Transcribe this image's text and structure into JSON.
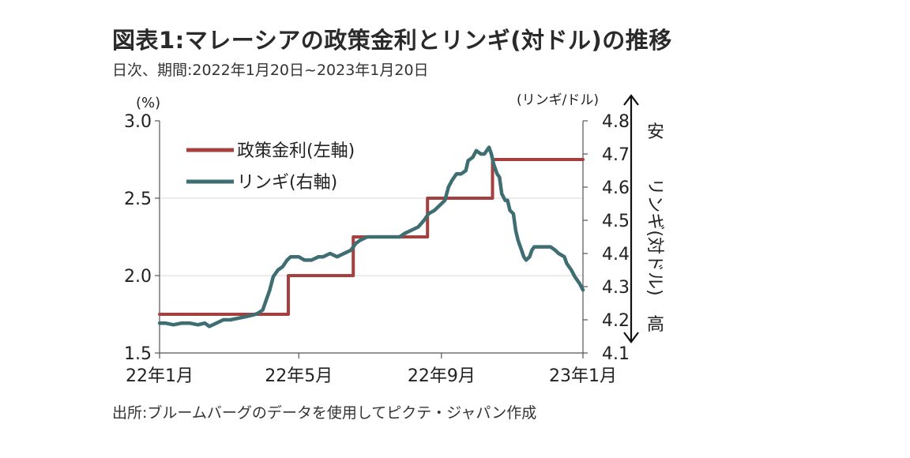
{
  "title": "図表1:マレーシアの政策金利とリンギ(対ドル)の推移",
  "subtitle": "日次、期間:2022年1月20日~2023年1月20日",
  "source": "出所:ブルームバーグのデータを使用してピクテ・ジャパン作成",
  "colors": {
    "policy_rate": "#a5403f",
    "ringgit": "#3e6d72",
    "axis": "#555555",
    "grid": "#d9d9d9"
  },
  "chart_data": {
    "type": "line",
    "title": "図表1:マレーシアの政策金利とリンギ(対ドル)の推移",
    "subtitle": "日次、期間:2022年1月20日~2023年1月20日",
    "x_tick_labels": [
      "22年1月",
      "22年5月",
      "22年9月",
      "23年1月"
    ],
    "x_ticks": [
      "2022-01-20",
      "2022-05-20",
      "2022-09-20",
      "2023-01-20"
    ],
    "xlim": [
      "2022-01-20",
      "2023-01-20"
    ],
    "y_left": {
      "unit": "(%)",
      "ylim": [
        1.5,
        3.0
      ],
      "ticks": [
        "1.5",
        "2.0",
        "2.5",
        "3.0"
      ]
    },
    "y_right": {
      "unit": "(リンギ/ドル)",
      "ylim": [
        4.1,
        4.8
      ],
      "ticks": [
        "4.1",
        "4.2",
        "4.3",
        "4.4",
        "4.5",
        "4.6",
        "4.7",
        "4.8"
      ]
    },
    "right_annotation": {
      "top": "安",
      "middle": "リンギ(対ドル)",
      "bottom": "高"
    },
    "grid": true,
    "legend_position": "top-left",
    "series": [
      {
        "name": "政策金利(左軸)",
        "axis": "left",
        "style": "step",
        "points": [
          [
            "2022-01-20",
            1.75
          ],
          [
            "2022-05-11",
            2.0
          ],
          [
            "2022-07-06",
            2.25
          ],
          [
            "2022-09-08",
            2.5
          ],
          [
            "2022-11-03",
            2.75
          ],
          [
            "2023-01-20",
            2.75
          ]
        ]
      },
      {
        "name": "リンギ(右軸)",
        "axis": "right",
        "style": "line",
        "points": [
          [
            "2022-01-20",
            4.19
          ],
          [
            "2022-01-25",
            4.19
          ],
          [
            "2022-02-01",
            4.185
          ],
          [
            "2022-02-08",
            4.19
          ],
          [
            "2022-02-15",
            4.19
          ],
          [
            "2022-02-22",
            4.185
          ],
          [
            "2022-02-28",
            4.19
          ],
          [
            "2022-03-04",
            4.18
          ],
          [
            "2022-03-10",
            4.19
          ],
          [
            "2022-03-16",
            4.2
          ],
          [
            "2022-03-22",
            4.2
          ],
          [
            "2022-03-29",
            4.205
          ],
          [
            "2022-04-05",
            4.21
          ],
          [
            "2022-04-11",
            4.215
          ],
          [
            "2022-04-15",
            4.22
          ],
          [
            "2022-04-19",
            4.23
          ],
          [
            "2022-04-21",
            4.25
          ],
          [
            "2022-04-25",
            4.29
          ],
          [
            "2022-04-28",
            4.33
          ],
          [
            "2022-05-02",
            4.35
          ],
          [
            "2022-05-06",
            4.36
          ],
          [
            "2022-05-10",
            4.38
          ],
          [
            "2022-05-13",
            4.39
          ],
          [
            "2022-05-17",
            4.39
          ],
          [
            "2022-05-20",
            4.39
          ],
          [
            "2022-05-25",
            4.38
          ],
          [
            "2022-05-31",
            4.38
          ],
          [
            "2022-06-06",
            4.39
          ],
          [
            "2022-06-10",
            4.39
          ],
          [
            "2022-06-16",
            4.4
          ],
          [
            "2022-06-22",
            4.39
          ],
          [
            "2022-06-28",
            4.4
          ],
          [
            "2022-07-04",
            4.41
          ],
          [
            "2022-07-08",
            4.43
          ],
          [
            "2022-07-12",
            4.44
          ],
          [
            "2022-07-18",
            4.45
          ],
          [
            "2022-07-22",
            4.45
          ],
          [
            "2022-07-28",
            4.45
          ],
          [
            "2022-08-03",
            4.45
          ],
          [
            "2022-08-09",
            4.45
          ],
          [
            "2022-08-15",
            4.45
          ],
          [
            "2022-08-19",
            4.46
          ],
          [
            "2022-08-25",
            4.47
          ],
          [
            "2022-08-31",
            4.48
          ],
          [
            "2022-09-05",
            4.5
          ],
          [
            "2022-09-09",
            4.52
          ],
          [
            "2022-09-14",
            4.53
          ],
          [
            "2022-09-20",
            4.55
          ],
          [
            "2022-09-23",
            4.56
          ],
          [
            "2022-09-26",
            4.6
          ],
          [
            "2022-09-29",
            4.62
          ],
          [
            "2022-10-03",
            4.64
          ],
          [
            "2022-10-07",
            4.64
          ],
          [
            "2022-10-11",
            4.65
          ],
          [
            "2022-10-13",
            4.68
          ],
          [
            "2022-10-17",
            4.69
          ],
          [
            "2022-10-20",
            4.71
          ],
          [
            "2022-10-24",
            4.7
          ],
          [
            "2022-10-27",
            4.7
          ],
          [
            "2022-10-31",
            4.72
          ],
          [
            "2022-11-02",
            4.7
          ],
          [
            "2022-11-04",
            4.67
          ],
          [
            "2022-11-07",
            4.64
          ],
          [
            "2022-11-09",
            4.63
          ],
          [
            "2022-11-11",
            4.58
          ],
          [
            "2022-11-14",
            4.56
          ],
          [
            "2022-11-16",
            4.56
          ],
          [
            "2022-11-18",
            4.53
          ],
          [
            "2022-11-21",
            4.52
          ],
          [
            "2022-11-23",
            4.47
          ],
          [
            "2022-11-25",
            4.44
          ],
          [
            "2022-11-28",
            4.41
          ],
          [
            "2022-11-30",
            4.39
          ],
          [
            "2022-12-02",
            4.38
          ],
          [
            "2022-12-05",
            4.39
          ],
          [
            "2022-12-07",
            4.41
          ],
          [
            "2022-12-09",
            4.42
          ],
          [
            "2022-12-12",
            4.42
          ],
          [
            "2022-12-16",
            4.42
          ],
          [
            "2022-12-20",
            4.42
          ],
          [
            "2022-12-23",
            4.42
          ],
          [
            "2022-12-27",
            4.41
          ],
          [
            "2022-12-30",
            4.4
          ],
          [
            "2023-01-04",
            4.39
          ],
          [
            "2023-01-06",
            4.37
          ],
          [
            "2023-01-10",
            4.35
          ],
          [
            "2023-01-13",
            4.33
          ],
          [
            "2023-01-17",
            4.31
          ],
          [
            "2023-01-20",
            4.29
          ]
        ]
      }
    ]
  }
}
